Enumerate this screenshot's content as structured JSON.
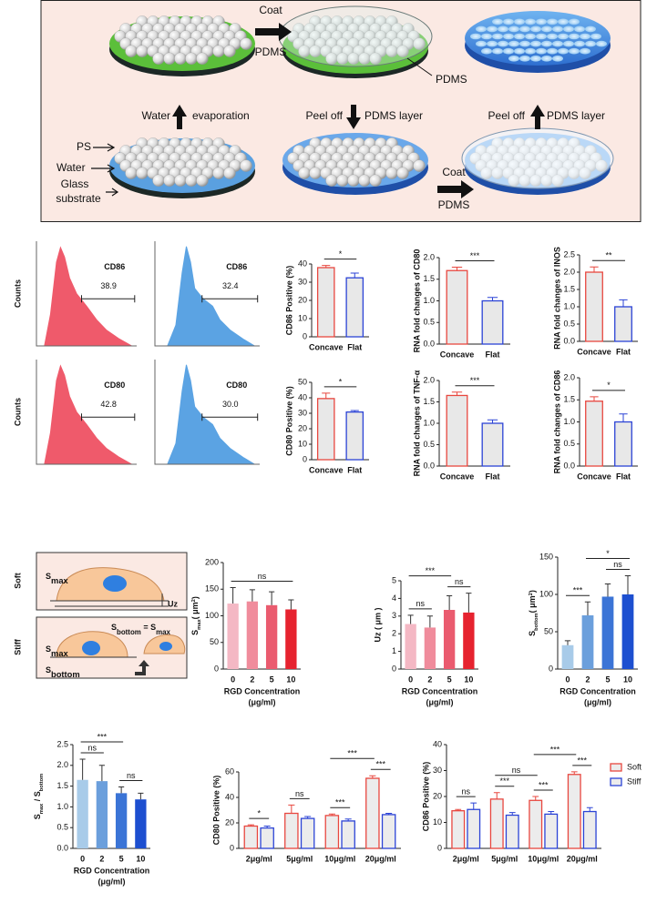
{
  "diagram": {
    "coat_top": [
      "Coat",
      "PDMS"
    ],
    "pdms_label": "PDMS",
    "step_left": [
      "Water",
      "evaporation"
    ],
    "step_mid": [
      "Peel off",
      "PDMS layer"
    ],
    "step_right": [
      "Peel off",
      "PDMS layer"
    ],
    "ps": "PS",
    "water": "Water",
    "glass": [
      "Glass",
      "substrate"
    ],
    "coat_bottom": [
      "Coat",
      "PDMS"
    ]
  },
  "schematic": {
    "soft": "Soft",
    "stiff": "Stiff",
    "soft_smax": [
      {
        "text": "S"
      },
      {
        "text": "max",
        "sub": true
      }
    ],
    "uz": "Uz",
    "stiff_eq": [
      {
        "text": "S"
      },
      {
        "text": "bottom",
        "sub": true
      },
      {
        "text": " = S"
      },
      {
        "text": "max",
        "sub": true
      }
    ],
    "stiff_smax": [
      {
        "text": "S"
      },
      {
        "text": "max",
        "sub": true
      }
    ],
    "stiff_sbottom": [
      {
        "text": "S"
      },
      {
        "text": "bottom",
        "sub": true
      }
    ]
  },
  "chart_data": [
    {
      "type": "flow",
      "ylabel": "Counts",
      "marker": "CD86",
      "value": 38.9,
      "color": "#ef5a6b"
    },
    {
      "type": "flow",
      "marker": "CD86",
      "value": 32.4,
      "color": "#5ba3e3"
    },
    {
      "type": "bar",
      "ylabel": "CD86 Positive (%)",
      "categories": [
        "Concave",
        "Flat"
      ],
      "series": [
        {
          "values": [
            38,
            32.4
          ],
          "errors": [
            1.2,
            2.6
          ]
        }
      ],
      "fill": "#e8e8e8",
      "edgecolors": [
        "#e8473f",
        "#2b43d6"
      ],
      "ylim": [
        0,
        40
      ],
      "yticks": [
        0,
        10,
        20,
        30,
        40
      ],
      "brackets": [
        {
          "label": "*",
          "between": [
            0,
            1
          ]
        }
      ]
    },
    {
      "type": "bar",
      "ylabel": "RNA fold changes of CD80",
      "categories": [
        "Concave",
        "Flat"
      ],
      "series": [
        {
          "values": [
            1.7,
            1.0
          ],
          "errors": [
            0.08,
            0.08
          ]
        }
      ],
      "fill": "#e8e8e8",
      "edgecolors": [
        "#e8473f",
        "#2b43d6"
      ],
      "ylim": [
        0,
        2
      ],
      "yticks": [
        {
          "value": 0,
          "label": "0.0"
        },
        0.5,
        {
          "value": 1,
          "label": "1.0"
        },
        1.5,
        {
          "value": 2,
          "label": "2.0"
        }
      ],
      "brackets": [
        {
          "label": "***",
          "between": [
            0,
            1
          ]
        }
      ]
    },
    {
      "type": "bar",
      "ylabel": "RNA fold changes of INOS",
      "categories": [
        "Concave",
        "Flat"
      ],
      "series": [
        {
          "values": [
            2.0,
            1.0
          ],
          "errors": [
            0.15,
            0.2
          ]
        }
      ],
      "fill": "#e8e8e8",
      "edgecolors": [
        "#e8473f",
        "#2b43d6"
      ],
      "ylim": [
        0,
        2.5
      ],
      "yticks": [
        {
          "value": 0,
          "label": "0.0"
        },
        0.5,
        {
          "value": 1,
          "label": "1.0"
        },
        1.5,
        {
          "value": 2,
          "label": "2.0"
        },
        2.5
      ],
      "brackets": [
        {
          "label": "**",
          "between": [
            0,
            1
          ]
        }
      ]
    },
    {
      "type": "flow",
      "ylabel": "Counts",
      "marker": "CD80",
      "value": 42.8,
      "color": "#ef5a6b"
    },
    {
      "type": "flow",
      "marker": "CD80",
      "value": 30,
      "value_label": "30.0",
      "color": "#5ba3e3"
    },
    {
      "type": "bar",
      "ylabel": "CD80 Positive (%)",
      "categories": [
        "Concave",
        "Flat"
      ],
      "series": [
        {
          "values": [
            39.5,
            30.8
          ],
          "errors": [
            3.5,
            1
          ]
        }
      ],
      "fill": "#e8e8e8",
      "edgecolors": [
        "#e8473f",
        "#2b43d6"
      ],
      "ylim": [
        0,
        50
      ],
      "yticks": [
        0,
        10,
        20,
        30,
        40,
        50
      ],
      "brackets": [
        {
          "label": "*",
          "between": [
            0,
            1
          ]
        }
      ]
    },
    {
      "type": "bar",
      "ylabel": "RNA fold changes of TNF-α",
      "categories": [
        "Concave",
        "Flat"
      ],
      "series": [
        {
          "values": [
            1.65,
            1.0
          ],
          "errors": [
            0.08,
            0.08
          ]
        }
      ],
      "fill": "#e8e8e8",
      "edgecolors": [
        "#e8473f",
        "#2b43d6"
      ],
      "ylim": [
        0,
        2
      ],
      "yticks": [
        {
          "value": 0,
          "label": "0.0"
        },
        0.5,
        {
          "value": 1,
          "label": "1.0"
        },
        1.5,
        {
          "value": 2,
          "label": "2.0"
        }
      ],
      "brackets": [
        {
          "label": "***",
          "between": [
            0,
            1
          ]
        }
      ]
    },
    {
      "type": "bar",
      "ylabel": "RNA fold changes of CD86",
      "categories": [
        "Concave",
        "Flat"
      ],
      "series": [
        {
          "values": [
            1.47,
            1.0
          ],
          "errors": [
            0.1,
            0.18
          ]
        }
      ],
      "fill": "#e8e8e8",
      "edgecolors": [
        "#e8473f",
        "#2b43d6"
      ],
      "ylim": [
        0,
        2
      ],
      "yticks": [
        {
          "value": 0,
          "label": "0.0"
        },
        0.5,
        {
          "value": 1,
          "label": "1.0"
        },
        1.5,
        {
          "value": 2,
          "label": "2.0"
        }
      ],
      "brackets": [
        {
          "label": "*",
          "between": [
            0,
            1
          ]
        }
      ]
    },
    {
      "type": "bar",
      "ylabel": [
        {
          "text": "S"
        },
        {
          "text": "max",
          "sub": true
        },
        {
          "text": "( μm"
        },
        {
          "text": "2",
          "sup": true
        },
        {
          "text": ")"
        }
      ],
      "xlabel": [
        "RGD Concentration",
        "(μg/ml)"
      ],
      "categories": [
        "0",
        "2",
        "5",
        "10"
      ],
      "series": [
        {
          "values": [
            123,
            127,
            120,
            112
          ],
          "errors": [
            30,
            22,
            25,
            18
          ]
        }
      ],
      "colors": [
        "#f4b8c4",
        "#f08c9c",
        "#ea5b6f",
        "#e6232f"
      ],
      "ylim": [
        0,
        200
      ],
      "yticks": [
        0,
        50,
        100,
        150,
        200
      ],
      "brackets": [
        {
          "label": "ns",
          "between": [
            0,
            3
          ]
        }
      ]
    },
    {
      "type": "bar",
      "ylabel": "Uz ( μm )",
      "xlabel": [
        "RGD Concentration",
        "(μg/ml)"
      ],
      "categories": [
        "0",
        "2",
        "5",
        "10"
      ],
      "series": [
        {
          "values": [
            2.55,
            2.35,
            3.35,
            3.2
          ],
          "errors": [
            0.5,
            0.65,
            0.8,
            1.1
          ]
        }
      ],
      "colors": [
        "#f4b8c4",
        "#f08c9c",
        "#ea5b6f",
        "#e6232f"
      ],
      "ylim": [
        0,
        5
      ],
      "yticks": [
        0,
        1,
        2,
        3,
        4,
        5
      ],
      "brackets": [
        {
          "label": "ns",
          "between": [
            0,
            1
          ]
        },
        {
          "label": "ns",
          "between": [
            2,
            3
          ]
        },
        {
          "label": "***",
          "between": [
            0,
            2
          ]
        }
      ]
    },
    {
      "type": "bar",
      "ylabel": [
        {
          "text": "S"
        },
        {
          "text": "bottom",
          "sub": true
        },
        {
          "text": "( μm"
        },
        {
          "text": "2",
          "sup": true
        },
        {
          "text": ")"
        }
      ],
      "xlabel": [
        "RGD Concentration",
        "(μg/ml)"
      ],
      "categories": [
        "0",
        "2",
        "5",
        "10"
      ],
      "series": [
        {
          "values": [
            32,
            72,
            97,
            100
          ],
          "errors": [
            6,
            18,
            17,
            25
          ]
        }
      ],
      "colors": [
        "#a8cbe9",
        "#6b9fdc",
        "#3b74d6",
        "#1d4fd0"
      ],
      "ylim": [
        0,
        150
      ],
      "yticks": [
        0,
        50,
        100,
        150
      ],
      "brackets": [
        {
          "label": "***",
          "between": [
            0,
            1
          ]
        },
        {
          "label": "ns",
          "between": [
            2,
            3
          ]
        },
        {
          "label": "*",
          "between": [
            1,
            3
          ]
        }
      ]
    },
    {
      "type": "bar",
      "ylabel": [
        {
          "text": "S"
        },
        {
          "text": "max",
          "sub": true
        },
        {
          "text": " / S"
        },
        {
          "text": "bottom",
          "sub": true
        }
      ],
      "xlabel": [
        "RGD Concentration",
        "(μg/ml)"
      ],
      "categories": [
        "0",
        "2",
        "5",
        "10"
      ],
      "series": [
        {
          "values": [
            1.65,
            1.62,
            1.33,
            1.18
          ],
          "errors": [
            0.5,
            0.38,
            0.15,
            0.15
          ]
        }
      ],
      "colors": [
        "#a8cbe9",
        "#6b9fdc",
        "#3b74d6",
        "#1d4fd0"
      ],
      "ylim": [
        0,
        2.5
      ],
      "yticks": [
        {
          "value": 0,
          "label": "0.0"
        },
        0.5,
        {
          "value": 1,
          "label": "1.0"
        },
        1.5,
        {
          "value": 2,
          "label": "2.0"
        },
        2.5
      ],
      "brackets": [
        {
          "label": "ns",
          "between": [
            0,
            1
          ]
        },
        {
          "label": "ns",
          "between": [
            2,
            3
          ]
        },
        {
          "label": "***",
          "between": [
            0,
            2
          ]
        }
      ]
    },
    {
      "type": "grouped-bar",
      "ylabel": "CD80 Positive (%)",
      "categories": [
        "2μg/ml",
        "5μg/ml",
        "10μg/ml",
        "20μg/ml"
      ],
      "series": [
        {
          "name": "Soft",
          "color": "#e8473f",
          "values": [
            17.5,
            27.5,
            25.8,
            55
          ],
          "errors": [
            1,
            6.5,
            1.2,
            2
          ]
        },
        {
          "name": "Stiff",
          "color": "#2b43d6",
          "values": [
            16,
            23.5,
            21.5,
            26.5
          ],
          "errors": [
            1.5,
            1.5,
            1.5,
            1
          ]
        }
      ],
      "fill": "#ececec",
      "ylim": [
        0,
        60
      ],
      "yticks": [
        0,
        20,
        40,
        60
      ],
      "brackets": [
        {
          "label": "*",
          "between": [
            0,
            1
          ]
        },
        {
          "label": "ns",
          "between": [
            2,
            3
          ]
        },
        {
          "label": "***",
          "between": [
            4,
            5
          ]
        },
        {
          "label": "***",
          "between": [
            6,
            7
          ]
        },
        {
          "label": "***",
          "between": [
            4,
            6
          ]
        }
      ]
    },
    {
      "type": "grouped-bar",
      "ylabel": "CD86 Positive (%)",
      "categories": [
        "2μg/ml",
        "5μg/ml",
        "10μg/ml",
        "20μg/ml"
      ],
      "series": [
        {
          "name": "Soft",
          "color": "#e8473f",
          "values": [
            14.5,
            19,
            18.5,
            28.5
          ],
          "errors": [
            0.5,
            2.5,
            1.5,
            1
          ]
        },
        {
          "name": "Stiff",
          "color": "#2b43d6",
          "values": [
            15,
            12.8,
            13.2,
            14.2
          ],
          "errors": [
            2.5,
            1,
            1,
            1.5
          ]
        }
      ],
      "fill": "#ececec",
      "ylim": [
        0,
        40
      ],
      "yticks": [
        0,
        10,
        20,
        30,
        40
      ],
      "legend": "upper right",
      "brackets": [
        {
          "label": "ns",
          "between": [
            0,
            1
          ]
        },
        {
          "label": "***",
          "between": [
            2,
            3
          ]
        },
        {
          "label": "***",
          "between": [
            4,
            5
          ]
        },
        {
          "label": "***",
          "between": [
            6,
            7
          ]
        },
        {
          "label": "ns",
          "between": [
            2,
            4
          ]
        },
        {
          "label": "***",
          "between": [
            4,
            6
          ]
        }
      ]
    }
  ]
}
